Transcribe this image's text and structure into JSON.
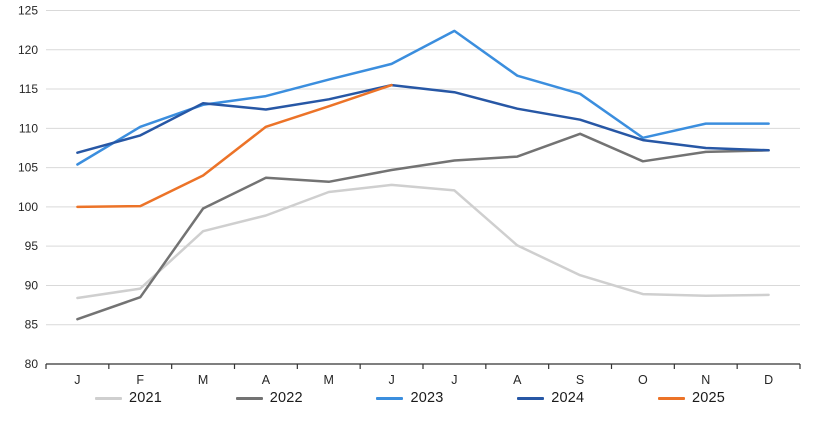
{
  "chart_data": {
    "type": "line",
    "title": "",
    "x_categories": [
      "J",
      "F",
      "M",
      "A",
      "M",
      "J",
      "J",
      "A",
      "S",
      "O",
      "N",
      "D"
    ],
    "y_tick_labels": [
      "125",
      "120",
      "115",
      "110",
      "105",
      "100",
      "95",
      "90",
      "85",
      "80"
    ],
    "ylim": [
      80,
      125
    ],
    "ytick_step": 5,
    "grid": "horizontal-only",
    "legend_position": "bottom",
    "series": [
      {
        "name": "2021",
        "color": "#CFCFCF",
        "values": [
          88.4,
          89.6,
          96.9,
          98.9,
          101.9,
          102.8,
          102.1,
          95.1,
          91.3,
          88.9,
          88.7,
          88.8
        ]
      },
      {
        "name": "2022",
        "color": "#737373",
        "values": [
          85.7,
          88.5,
          99.8,
          103.7,
          103.2,
          104.7,
          105.9,
          106.4,
          109.3,
          105.8,
          107.0,
          107.2
        ]
      },
      {
        "name": "2023",
        "color": "#3B8EDE",
        "values": [
          105.4,
          110.2,
          113.0,
          114.1,
          116.2,
          118.2,
          122.4,
          116.7,
          114.4,
          108.8,
          110.6,
          110.6
        ]
      },
      {
        "name": "2024",
        "color": "#2757A5",
        "values": [
          106.9,
          109.1,
          113.2,
          112.4,
          113.7,
          115.5,
          114.6,
          112.5,
          111.1,
          108.5,
          107.5,
          107.2
        ]
      },
      {
        "name": "2025",
        "color": "#EC7328",
        "values": [
          100.0,
          100.1,
          104.0,
          110.2,
          112.8,
          115.5
        ]
      }
    ]
  },
  "colors": {
    "gridline": "#D9D9D9",
    "axis": "#333333",
    "tick": "#333333",
    "text": "#262626",
    "background": "#FFFFFF"
  }
}
